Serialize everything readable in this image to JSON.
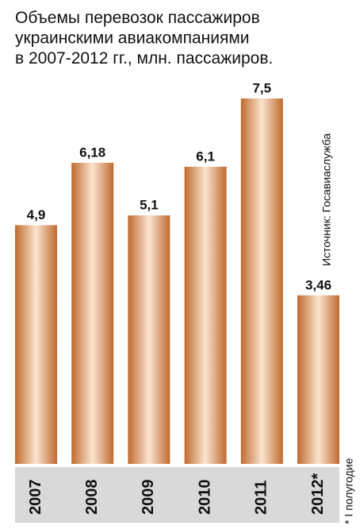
{
  "chart_data": {
    "type": "bar",
    "title": [
      "Объемы перевозок пассажиров",
      "украинскими авиакомпаниями",
      "в 2007-2012 гг., млн. пассажиров."
    ],
    "categories": [
      "2007",
      "2008",
      "2009",
      "2010",
      "2011",
      "2012*"
    ],
    "values": [
      4.9,
      6.18,
      5.1,
      6.1,
      7.5,
      3.46
    ],
    "value_labels": [
      "4,9",
      "6,18",
      "5,1",
      "6,1",
      "7,5",
      "3,46"
    ],
    "color": "#c8753a",
    "source": "Источник: Госавиаслужба",
    "footnote": "* I полугодие"
  }
}
